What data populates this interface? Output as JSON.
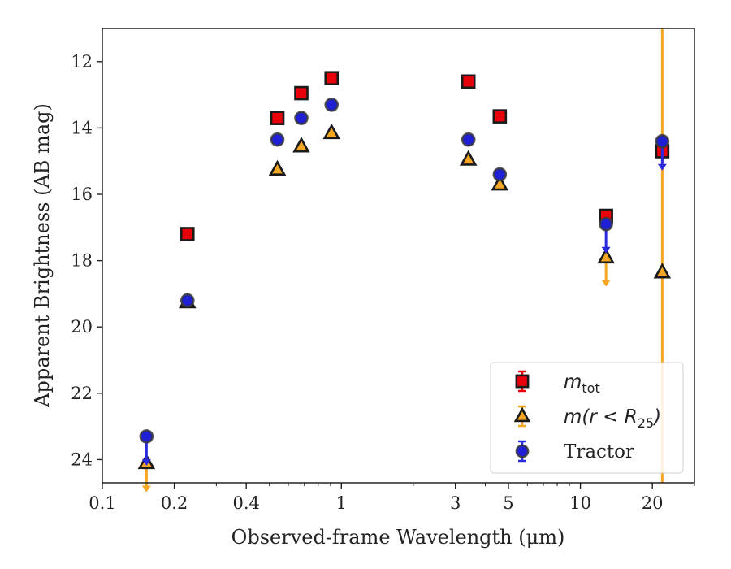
{
  "chart_data": {
    "type": "scatter",
    "xlabel": "Observed-frame Wavelength (μm)",
    "ylabel": "Apparent Brightness (AB mag)",
    "x_scale": "log",
    "xlim": [
      0.1,
      30
    ],
    "ylim": [
      24.7,
      11
    ],
    "y_inverted": true,
    "x_ticks": [
      {
        "value": 0.1,
        "label": "0.1"
      },
      {
        "value": 0.2,
        "label": "0.2"
      },
      {
        "value": 0.4,
        "label": "0.4"
      },
      {
        "value": 1,
        "label": "1"
      },
      {
        "value": 3,
        "label": "3"
      },
      {
        "value": 5,
        "label": "5"
      },
      {
        "value": 10,
        "label": "10"
      },
      {
        "value": 20,
        "label": "20"
      }
    ],
    "y_ticks": [
      {
        "value": 12,
        "label": "12"
      },
      {
        "value": 14,
        "label": "14"
      },
      {
        "value": 16,
        "label": "16"
      },
      {
        "value": 18,
        "label": "18"
      },
      {
        "value": 20,
        "label": "20"
      },
      {
        "value": 22,
        "label": "22"
      },
      {
        "value": 24,
        "label": "24"
      }
    ],
    "grid": false,
    "legend_position": "bottom-right",
    "series": [
      {
        "key": "mtot",
        "legend_base": "m",
        "legend_sub": "tot",
        "legend_rest": "",
        "marker": "square",
        "color": "#e8000b",
        "edge_color": "#1a1a1a",
        "error_color": "#e8000b",
        "points": [
          {
            "x": 0.227,
            "y": 17.2
          },
          {
            "x": 0.54,
            "y": 13.7
          },
          {
            "x": 0.68,
            "y": 12.95
          },
          {
            "x": 0.91,
            "y": 12.5
          },
          {
            "x": 3.4,
            "y": 12.6
          },
          {
            "x": 4.6,
            "y": 13.65
          },
          {
            "x": 12.8,
            "y": 16.65
          },
          {
            "x": 22.0,
            "y": 14.7
          }
        ]
      },
      {
        "key": "mr25",
        "legend_base": "m(r < R",
        "legend_sub": "25",
        "legend_rest": ")",
        "marker": "triangle",
        "color": "#f5a623",
        "edge_color": "#1a1a1a",
        "error_color": "#f5a623",
        "points": [
          {
            "x": 0.153,
            "y": 24.1,
            "upper_limit": true
          },
          {
            "x": 0.227,
            "y": 19.25
          },
          {
            "x": 0.54,
            "y": 15.25
          },
          {
            "x": 0.68,
            "y": 14.55
          },
          {
            "x": 0.91,
            "y": 14.15
          },
          {
            "x": 3.4,
            "y": 14.95
          },
          {
            "x": 4.6,
            "y": 15.7
          },
          {
            "x": 12.8,
            "y": 17.9,
            "upper_limit": true
          },
          {
            "x": 22.0,
            "y": 18.35,
            "err_low": 11.0,
            "err_high": 24.7
          }
        ]
      },
      {
        "key": "tractor",
        "legend_base": "Tractor",
        "legend_sub": "",
        "legend_rest": "",
        "marker": "circle",
        "color": "#1f1fd6",
        "edge_color": "#3a3a3a",
        "error_color": "#2a2ae0",
        "points": [
          {
            "x": 0.153,
            "y": 23.3,
            "upper_limit": true
          },
          {
            "x": 0.227,
            "y": 19.2
          },
          {
            "x": 0.54,
            "y": 14.35
          },
          {
            "x": 0.68,
            "y": 13.7
          },
          {
            "x": 0.91,
            "y": 13.3
          },
          {
            "x": 3.4,
            "y": 14.35
          },
          {
            "x": 4.6,
            "y": 15.4
          },
          {
            "x": 12.8,
            "y": 16.9,
            "upper_limit": true
          },
          {
            "x": 22.0,
            "y": 14.4,
            "upper_limit": true
          }
        ]
      }
    ]
  }
}
